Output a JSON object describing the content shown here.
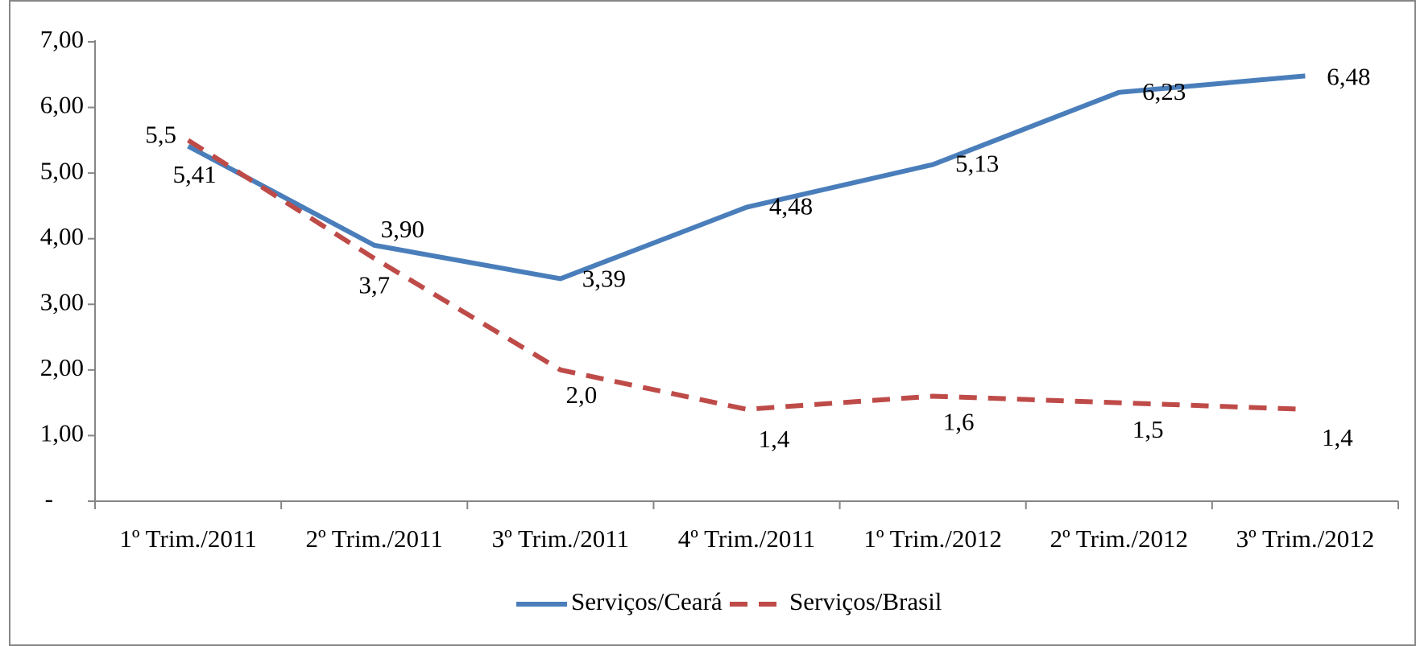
{
  "chart_data": {
    "type": "line",
    "categories": [
      "1º Trim./2011",
      "2º Trim./2011",
      "3º Trim./2011",
      "4º Trim./2011",
      "1º Trim./2012",
      "2º Trim./2012",
      "3º Trim./2012"
    ],
    "series": [
      {
        "name": "Serviços/Ceará",
        "color": "#4a7ebb",
        "dash": false,
        "values": [
          5.41,
          3.9,
          3.39,
          4.48,
          5.13,
          6.23,
          6.48
        ],
        "value_labels": [
          "5,41",
          "3,90",
          "3,39",
          "4,48",
          "5,13",
          "6,23",
          "6,48"
        ]
      },
      {
        "name": "Serviços/Brasil",
        "color": "#be4b48",
        "dash": true,
        "values": [
          5.5,
          3.7,
          2.0,
          1.4,
          1.6,
          1.5,
          1.4
        ],
        "value_labels": [
          "5,5",
          "3,7",
          "2,0",
          "1,4",
          "1,6",
          "1,5",
          "1,4"
        ]
      }
    ],
    "ylim": [
      0,
      7
    ],
    "yticks": [
      {
        "value": 0,
        "label": "-"
      },
      {
        "value": 1,
        "label": "1,00"
      },
      {
        "value": 2,
        "label": "2,00"
      },
      {
        "value": 3,
        "label": "3,00"
      },
      {
        "value": 4,
        "label": "4,00"
      },
      {
        "value": 5,
        "label": "5,00"
      },
      {
        "value": 6,
        "label": "6,00"
      },
      {
        "value": 7,
        "label": "7,00"
      }
    ],
    "legend": "bottom"
  }
}
